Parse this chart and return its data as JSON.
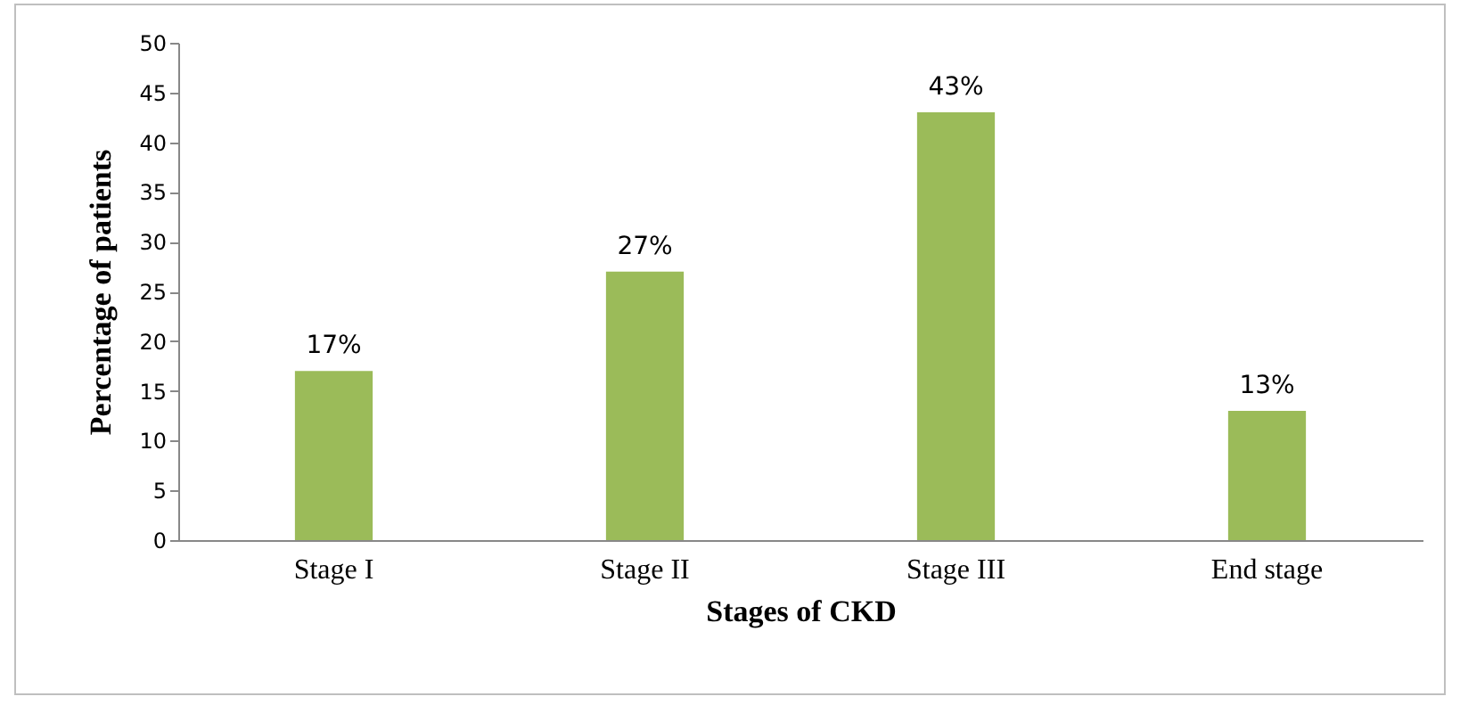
{
  "chart_data": {
    "type": "bar",
    "xlabel": "Stages of CKD",
    "ylabel": "Percentage of patients",
    "categories": [
      "Stage I",
      "Stage II",
      "Stage III",
      "End stage"
    ],
    "values": [
      17,
      27,
      43,
      13
    ],
    "color": "#9bbb59",
    "value_labels": [
      "17%",
      "27%",
      "43%",
      "13%"
    ],
    "ylim": [
      0,
      50
    ],
    "yticks": [
      0,
      5,
      10,
      15,
      20,
      25,
      30,
      35,
      40,
      45,
      50
    ]
  }
}
